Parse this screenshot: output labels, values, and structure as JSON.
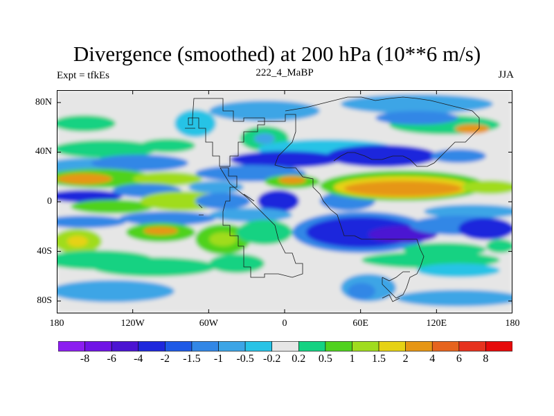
{
  "chart_data": {
    "type": "heatmap",
    "title": "Divergence (smoothed) at 200 hPa (10**6 m/s)",
    "subtitle_left": "Expt = tfkEs",
    "subtitle_center": "222_4_MaBP",
    "subtitle_right": "JJA",
    "x_tick_labels": [
      "180",
      "120W",
      "60W",
      "0",
      "60E",
      "120E",
      "180"
    ],
    "x_tick_values": [
      -180,
      -120,
      -60,
      0,
      60,
      120,
      180
    ],
    "y_tick_labels": [
      "80N",
      "40N",
      "0",
      "40S",
      "80S"
    ],
    "y_tick_values": [
      80,
      40,
      0,
      -40,
      -80
    ],
    "xlim": [
      -180,
      180
    ],
    "ylim": [
      -90,
      90
    ],
    "colorbar_levels": [
      "-8",
      "-6",
      "-4",
      "-2",
      "-1.5",
      "-1",
      "-0.5",
      "-0.2",
      "0.2",
      "0.5",
      "1",
      "1.5",
      "2",
      "4",
      "6",
      "8"
    ],
    "colorbar_colors": [
      "#8c1ef0",
      "#7014e6",
      "#4b14d2",
      "#1e28dc",
      "#1e5ae6",
      "#3287e6",
      "#3ca5e6",
      "#28c3e6",
      "#e6e6e6",
      "#14d282",
      "#50d21e",
      "#a0dc1e",
      "#e6d214",
      "#e69614",
      "#e6641e",
      "#e6321e",
      "#e60a0a"
    ]
  }
}
